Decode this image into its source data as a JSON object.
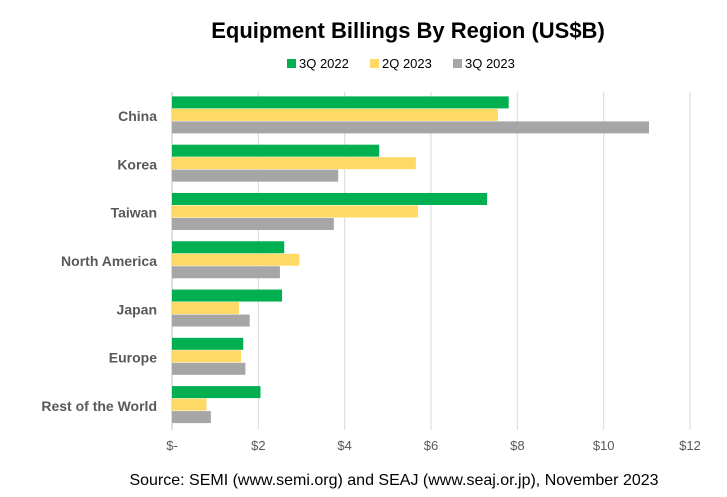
{
  "chart_data": {
    "type": "bar",
    "orientation": "horizontal",
    "title": "Equipment Billings By Region (US$B)",
    "categories": [
      "China",
      "Korea",
      "Taiwan",
      "North America",
      "Japan",
      "Europe",
      "Rest of the World"
    ],
    "series": [
      {
        "name": "3Q 2022",
        "color": "#00b050",
        "values": [
          7.8,
          4.8,
          7.3,
          2.6,
          2.55,
          1.65,
          2.05
        ]
      },
      {
        "name": "2Q 2023",
        "color": "#ffd966",
        "values": [
          7.55,
          5.65,
          5.7,
          2.95,
          1.55,
          1.6,
          0.8
        ]
      },
      {
        "name": "3Q 2023",
        "color": "#a6a6a6",
        "values": [
          11.05,
          3.85,
          3.75,
          2.5,
          1.8,
          1.7,
          0.9
        ]
      }
    ],
    "xlim": [
      0,
      12
    ],
    "xticks": [
      0,
      2,
      4,
      6,
      8,
      10,
      12
    ],
    "xtick_labels": [
      "$-",
      "$2",
      "$4",
      "$6",
      "$8",
      "$10",
      "$12"
    ],
    "grid": "vertical",
    "legend_position": "top-center",
    "xlabel": "",
    "ylabel": ""
  },
  "source": "Source: SEMI (www.semi.org) and SEAJ (www.seaj.or.jp), November 2023"
}
